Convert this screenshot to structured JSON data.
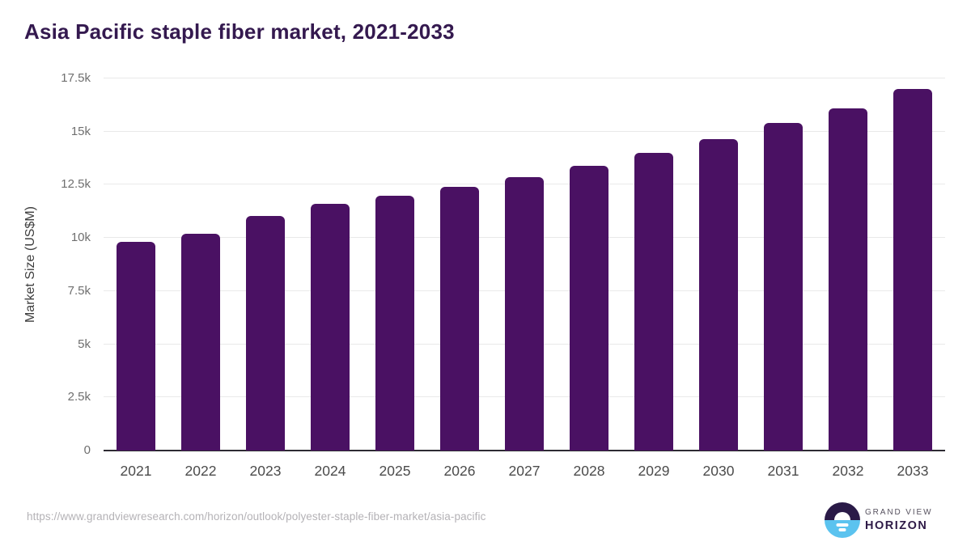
{
  "title": "Asia Pacific staple fiber market, 2021-2033",
  "chart_data": {
    "type": "bar",
    "title": "Asia Pacific staple fiber market, 2021-2033",
    "categories": [
      "2021",
      "2022",
      "2023",
      "2024",
      "2025",
      "2026",
      "2027",
      "2028",
      "2029",
      "2030",
      "2031",
      "2032",
      "2033"
    ],
    "values": [
      9800,
      10200,
      11050,
      11600,
      12000,
      12400,
      12850,
      13400,
      14000,
      14650,
      15400,
      16100,
      17000
    ],
    "xlabel": "",
    "ylabel": "Market Size (US$M)",
    "ylim": [
      0,
      17500
    ],
    "yticks": [
      0,
      2500,
      5000,
      7500,
      10000,
      12500,
      15000,
      17500
    ],
    "ytick_labels": [
      "0",
      "2.5k",
      "5k",
      "7.5k",
      "10k",
      "12.5k",
      "15k",
      "17.5k"
    ],
    "grid": true,
    "legend": "none",
    "bar_color": "#4a1163"
  },
  "colors": {
    "title_text": "#34194f",
    "bar": "#4a1163",
    "gridline": "#e9e9e9",
    "axis_line": "#2e2b33",
    "tick_label": "#6f6f6f",
    "category_label": "#4b4b4b",
    "url_text": "#b4b2b6",
    "logo_dark": "#2a1a47",
    "logo_blue": "#5bc3ef"
  },
  "footer": {
    "source_url": "https://www.grandviewresearch.com/horizon/outlook/polyester-staple-fiber-market/asia-pacific",
    "logo": {
      "line1": "GRAND VIEW",
      "line2": "HORIZON"
    }
  }
}
